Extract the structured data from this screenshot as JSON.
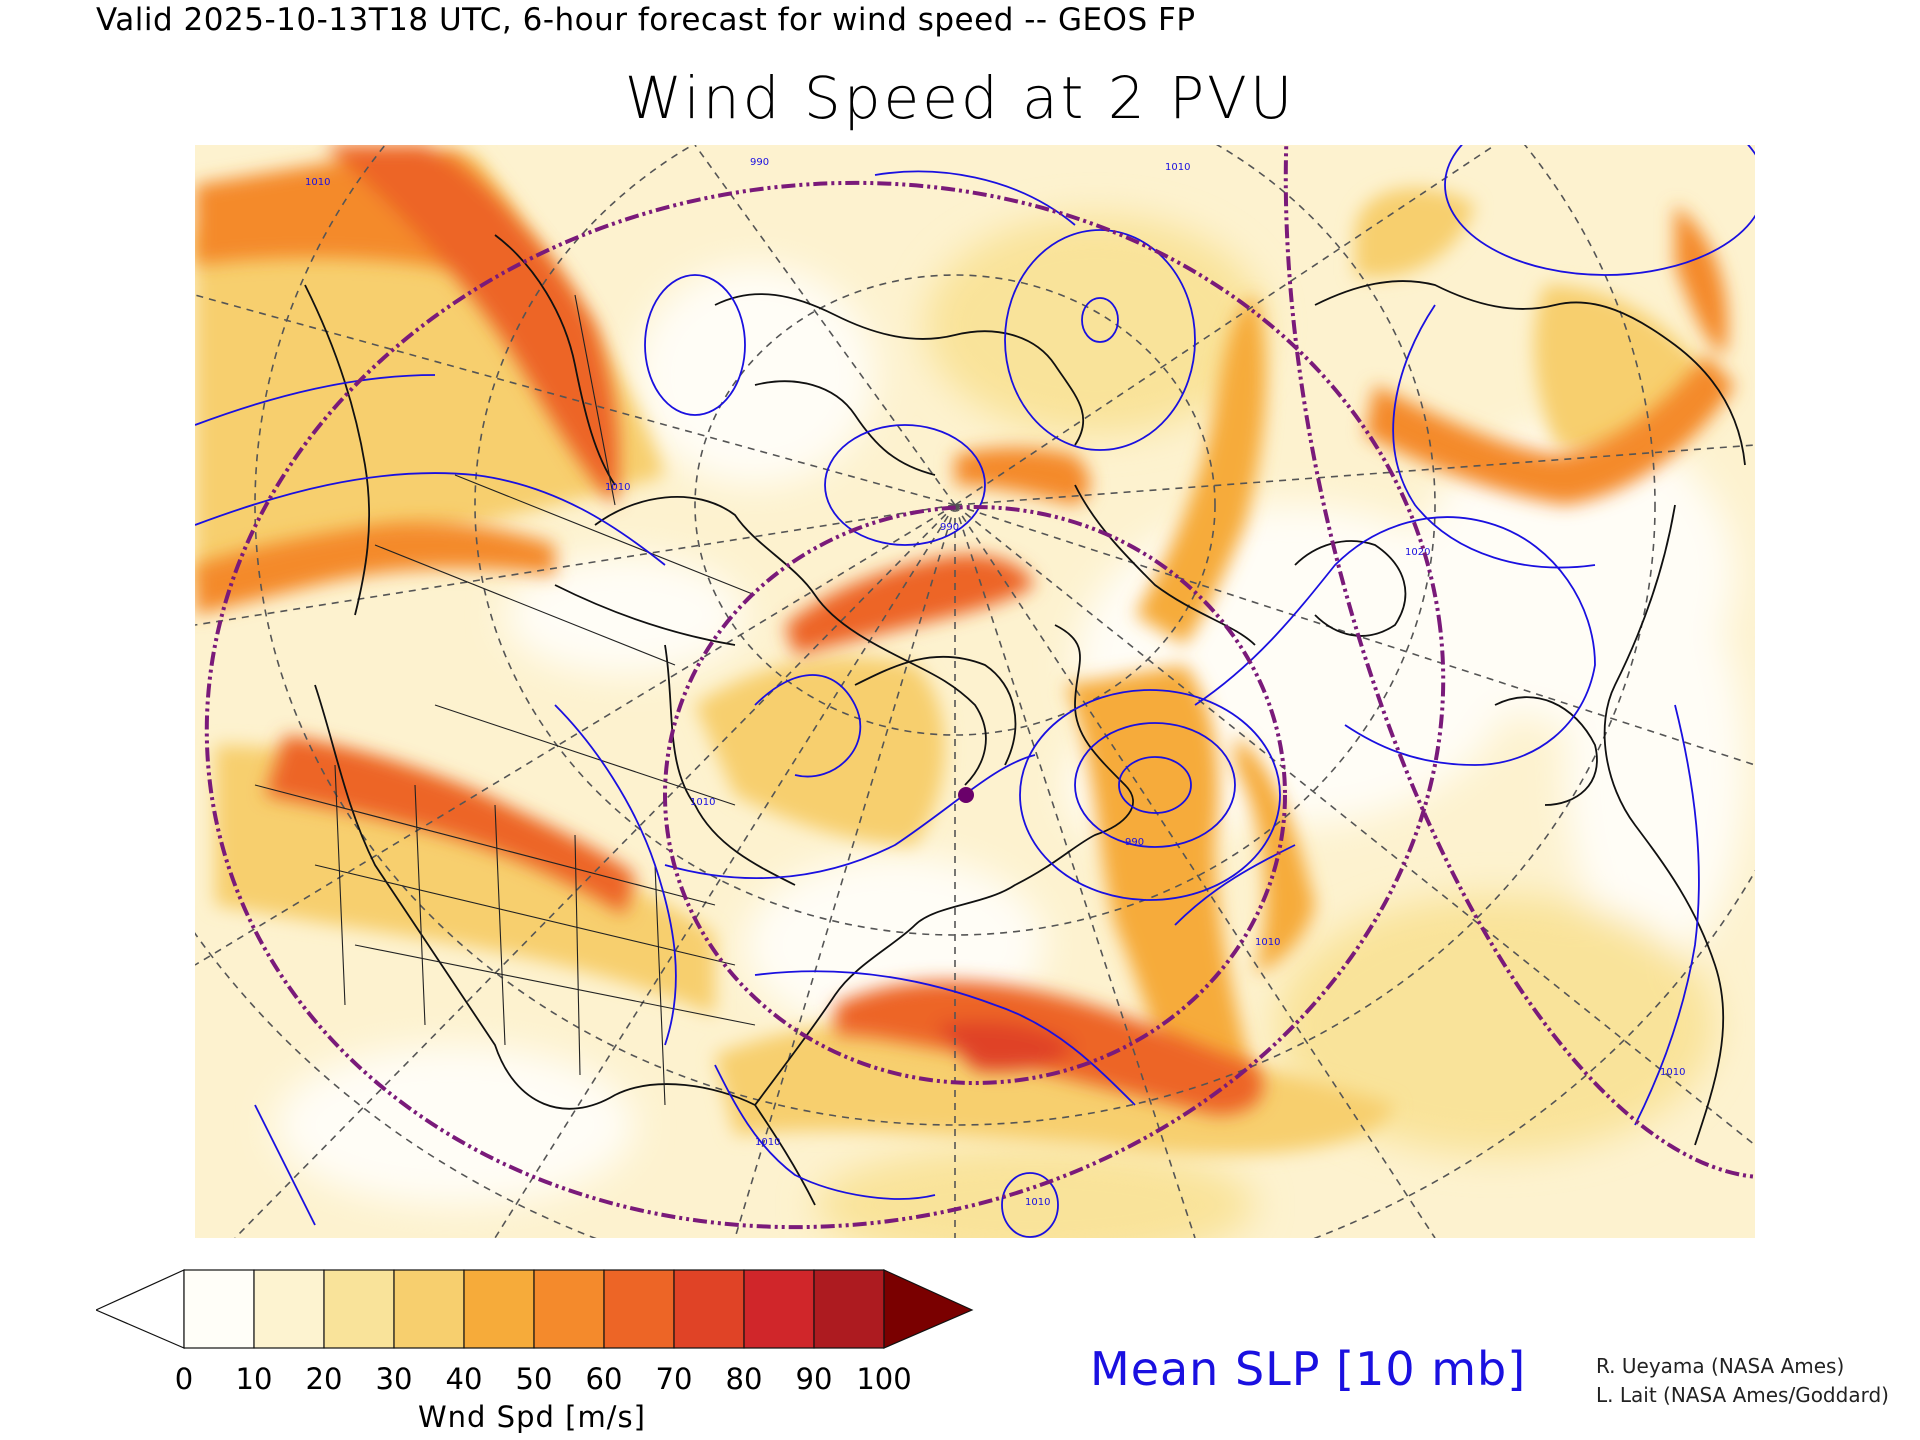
{
  "header": {
    "valid_line": "Valid 2025-10-13T18 UTC, 6-hour forecast for wind speed -- GEOS FP",
    "title": "Wind Speed at 2 PVU"
  },
  "map": {
    "projection": "polar stereographic (North America / North Atlantic)",
    "shading_variable": "wind speed at 2 PVU",
    "contour_variable": "mean sea level pressure",
    "contour_labels": [
      "1010",
      "1010",
      "1010",
      "1010",
      "1010",
      "990",
      "990",
      "990",
      "1010",
      "1010",
      "1010",
      "1010",
      "1020",
      "1010",
      "990",
      "1010"
    ],
    "reference_circle_color": "#7a1a7a",
    "contour_color": "#1a10e0",
    "marker_color": "#6a006a"
  },
  "colorbar": {
    "ticks": [
      "0",
      "10",
      "20",
      "30",
      "40",
      "50",
      "60",
      "70",
      "80",
      "90",
      "100"
    ],
    "colors": [
      "#fffef8",
      "#fdf3d0",
      "#f9e39a",
      "#f7cf6e",
      "#f6ab3a",
      "#f48a2c",
      "#ed6526",
      "#e04326",
      "#d0262a",
      "#ad1b20",
      "#7a0000"
    ],
    "label": "Wnd Spd [m/s]"
  },
  "legend": {
    "slp_label": "Mean SLP [10 mb]"
  },
  "credits": {
    "line1": "R. Ueyama (NASA Ames)",
    "line2": "L. Lait (NASA Ames/Goddard)"
  }
}
